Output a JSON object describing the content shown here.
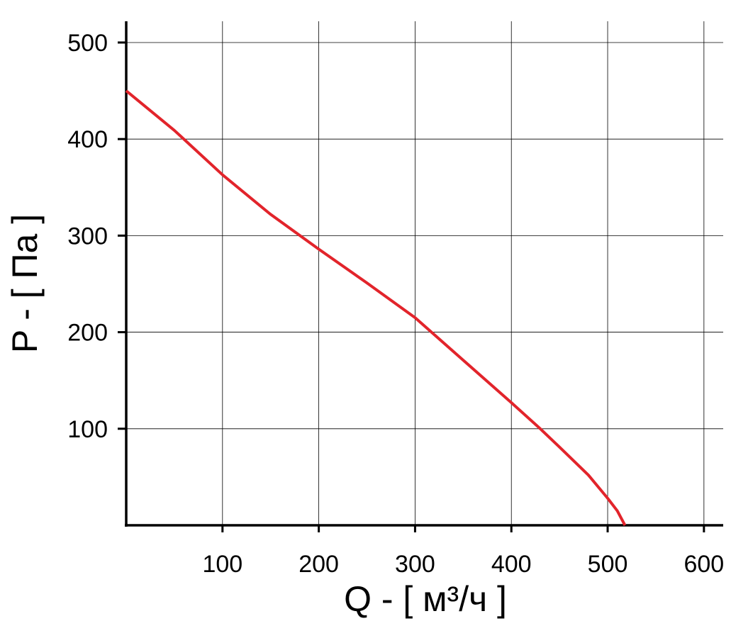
{
  "chart_data": {
    "type": "line",
    "xlabel": "Q - [ м³/ч ]",
    "ylabel": "P - [ Па ]",
    "series": [
      {
        "color": "#e2242b",
        "x": [
          0,
          50,
          100,
          150,
          200,
          250,
          300,
          350,
          400,
          430,
          450,
          480,
          500,
          510,
          518
        ],
        "values": [
          450,
          409,
          363,
          322,
          286,
          251,
          215,
          171,
          127,
          100,
          81,
          52,
          28,
          15,
          0
        ]
      }
    ],
    "xlim": [
      0,
      620
    ],
    "ylim": [
      0,
      522
    ],
    "xticks": [
      100,
      200,
      300,
      400,
      500,
      600
    ],
    "yticks": [
      100,
      200,
      300,
      400,
      500
    ],
    "grid": true
  }
}
